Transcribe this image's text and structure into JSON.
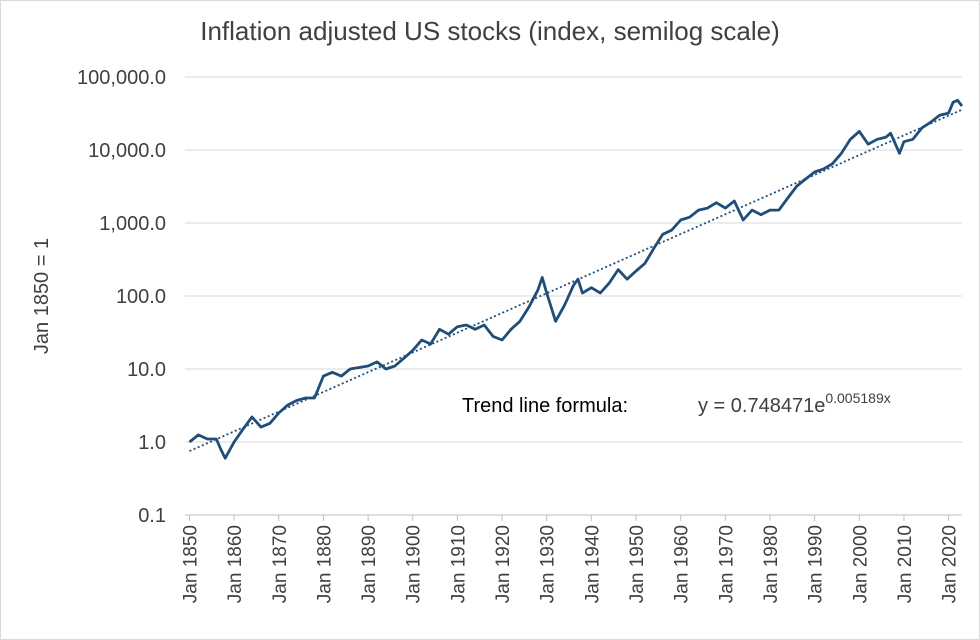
{
  "chart_data": {
    "type": "line",
    "title": "Inflation adjusted US stocks (index, semilog scale)",
    "y_label": "Jan 1850 = 1",
    "log_scale": true,
    "grid": true,
    "xlim": [
      1849,
      2023
    ],
    "xticks": [
      {
        "value": 1850,
        "label": "Jan 1850"
      },
      {
        "value": 1860,
        "label": "Jan 1860"
      },
      {
        "value": 1870,
        "label": "Jan 1870"
      },
      {
        "value": 1880,
        "label": "Jan 1880"
      },
      {
        "value": 1890,
        "label": "Jan 1890"
      },
      {
        "value": 1900,
        "label": "Jan 1900"
      },
      {
        "value": 1910,
        "label": "Jan 1910"
      },
      {
        "value": 1920,
        "label": "Jan 1920"
      },
      {
        "value": 1930,
        "label": "Jan 1930"
      },
      {
        "value": 1940,
        "label": "Jan 1940"
      },
      {
        "value": 1950,
        "label": "Jan 1950"
      },
      {
        "value": 1960,
        "label": "Jan 1960"
      },
      {
        "value": 1970,
        "label": "Jan 1970"
      },
      {
        "value": 1980,
        "label": "Jan 1980"
      },
      {
        "value": 1990,
        "label": "Jan 1990"
      },
      {
        "value": 2000,
        "label": "Jan 2000"
      },
      {
        "value": 2010,
        "label": "Jan 2010"
      },
      {
        "value": 2020,
        "label": "Jan 2020"
      }
    ],
    "ylim": [
      0.1,
      100000
    ],
    "yticks": [
      0.1,
      {
        "value": 1,
        "label": "1.0"
      },
      {
        "value": 10,
        "label": "10.0"
      },
      {
        "value": 100,
        "label": "100.0"
      },
      {
        "value": 1000,
        "label": "1,000.0"
      },
      {
        "value": 10000,
        "label": "10,000.0"
      },
      {
        "value": 100000,
        "label": "100,000.0"
      }
    ],
    "series": [
      {
        "color": "#1f4e79",
        "x": [
          1850,
          1852,
          1854,
          1856,
          1857,
          1858,
          1860,
          1862,
          1864,
          1866,
          1868,
          1870,
          1872,
          1874,
          1876,
          1878,
          1880,
          1882,
          1884,
          1886,
          1888,
          1890,
          1892,
          1894,
          1896,
          1898,
          1900,
          1902,
          1904,
          1906,
          1908,
          1910,
          1912,
          1914,
          1916,
          1918,
          1920,
          1922,
          1924,
          1926,
          1928,
          1929,
          1930,
          1932,
          1934,
          1936,
          1937,
          1938,
          1940,
          1942,
          1944,
          1946,
          1948,
          1950,
          1952,
          1954,
          1956,
          1958,
          1960,
          1962,
          1964,
          1966,
          1968,
          1970,
          1972,
          1974,
          1976,
          1978,
          1980,
          1982,
          1984,
          1986,
          1988,
          1990,
          1992,
          1994,
          1996,
          1998,
          2000,
          2002,
          2004,
          2006,
          2007,
          2009,
          2010,
          2012,
          2014,
          2016,
          2018,
          2020,
          2021,
          2022,
          2023
        ],
        "values": [
          1.0,
          1.25,
          1.1,
          1.1,
          0.8,
          0.6,
          1.0,
          1.5,
          2.2,
          1.6,
          1.8,
          2.5,
          3.2,
          3.7,
          4.0,
          4.0,
          8.0,
          9.0,
          8.0,
          10.0,
          10.5,
          11,
          12.5,
          10,
          11,
          14,
          18,
          25,
          22,
          35,
          30,
          38,
          40,
          35,
          40,
          28,
          25,
          35,
          45,
          70,
          120,
          180,
          110,
          45,
          75,
          140,
          170,
          110,
          130,
          110,
          150,
          230,
          170,
          220,
          280,
          450,
          700,
          800,
          1100,
          1200,
          1500,
          1600,
          1900,
          1600,
          2000,
          1100,
          1500,
          1300,
          1500,
          1500,
          2200,
          3200,
          4000,
          5000,
          5500,
          6500,
          9000,
          14000,
          18000,
          12000,
          14000,
          15000,
          17000,
          9000,
          13000,
          14000,
          20000,
          24000,
          30000,
          32000,
          45000,
          48000,
          40000
        ]
      }
    ],
    "trend": {
      "color": "#1f4e79",
      "x": [
        1850,
        2023
      ],
      "values": [
        0.75,
        35700
      ]
    },
    "annotation": {
      "label": "Trend line formula:",
      "formula": "y = 0.748471e",
      "exponent": "0.005189x"
    }
  }
}
